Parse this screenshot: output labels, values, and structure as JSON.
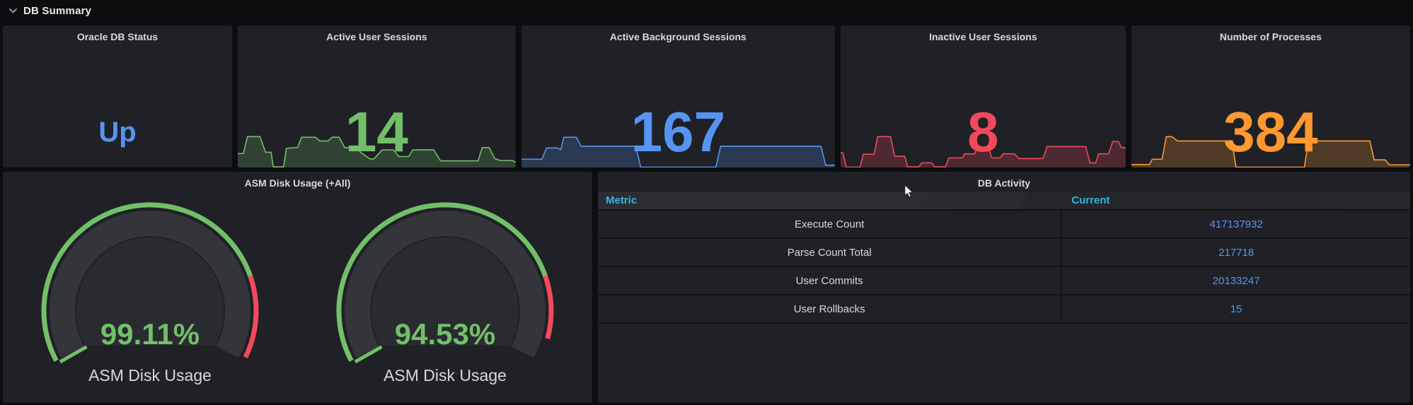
{
  "row_header": {
    "title": "DB Summary",
    "collapse_icon": "chevron-down"
  },
  "colors": {
    "page_bg": "#0c0d0f",
    "panel_bg": "#1f2126",
    "title_text": "#d8d9da",
    "blue": "#5794F2",
    "green": "#73BF69",
    "red": "#F2495C",
    "orange": "#FF9830",
    "table_header_blue": "#33B5E5",
    "gauge_track": "#33353a",
    "gauge_inner": "#292b30",
    "row_line": "#121316"
  },
  "stat_panels": [
    {
      "title": "Oracle DB Status",
      "value": "Up",
      "color": "#5794F2",
      "sparkline": null
    },
    {
      "title": "Active User Sessions",
      "value": "14",
      "color": "#73BF69",
      "sparkline": {
        "points": [
          [
            0,
            42
          ],
          [
            2,
            42
          ],
          [
            3.5,
            93
          ],
          [
            8,
            93
          ],
          [
            10,
            46
          ],
          [
            12,
            46
          ],
          [
            12.8,
            2
          ],
          [
            16.5,
            2
          ],
          [
            17.5,
            58
          ],
          [
            21.5,
            60
          ],
          [
            23,
            91
          ],
          [
            28,
            91
          ],
          [
            29.5,
            80
          ],
          [
            32.5,
            80
          ],
          [
            34,
            91
          ],
          [
            36.5,
            91
          ],
          [
            38.5,
            60
          ],
          [
            42.5,
            60
          ],
          [
            44.5,
            44
          ],
          [
            47.5,
            26
          ],
          [
            49,
            26
          ],
          [
            52,
            53
          ],
          [
            56,
            53
          ],
          [
            58,
            33
          ],
          [
            61.5,
            33
          ],
          [
            63,
            53
          ],
          [
            70.5,
            53
          ],
          [
            73,
            20
          ],
          [
            86.5,
            20
          ],
          [
            88,
            60
          ],
          [
            90.5,
            60
          ],
          [
            92.5,
            27
          ],
          [
            94.5,
            21
          ],
          [
            99,
            21
          ],
          [
            100,
            16
          ]
        ]
      }
    },
    {
      "title": "Active Background Sessions",
      "value": "167",
      "color": "#5794F2",
      "sparkline": {
        "points": [
          [
            0,
            25
          ],
          [
            6.5,
            25
          ],
          [
            8,
            59
          ],
          [
            11.5,
            59
          ],
          [
            12.5,
            53
          ],
          [
            13.5,
            91
          ],
          [
            17.5,
            91
          ],
          [
            19,
            64
          ],
          [
            36.5,
            64
          ],
          [
            38,
            1
          ],
          [
            62,
            1
          ],
          [
            63.5,
            64
          ],
          [
            95.5,
            64
          ],
          [
            97,
            7
          ],
          [
            100,
            7
          ]
        ]
      }
    },
    {
      "title": "Inactive User Sessions",
      "value": "8",
      "color": "#F2495C",
      "sparkline": {
        "points": [
          [
            0,
            44
          ],
          [
            0.8,
            44
          ],
          [
            2,
            1
          ],
          [
            6.8,
            1
          ],
          [
            8,
            40
          ],
          [
            11.8,
            40
          ],
          [
            13,
            93
          ],
          [
            17.5,
            93
          ],
          [
            19,
            34
          ],
          [
            22.5,
            34
          ],
          [
            23.5,
            2
          ],
          [
            27.5,
            2
          ],
          [
            28.5,
            14
          ],
          [
            32,
            14
          ],
          [
            33,
            2
          ],
          [
            36.8,
            2
          ],
          [
            38,
            29
          ],
          [
            42.8,
            29
          ],
          [
            43.5,
            41
          ],
          [
            47,
            41
          ],
          [
            48,
            60
          ],
          [
            52,
            60
          ],
          [
            53,
            29
          ],
          [
            56,
            29
          ],
          [
            57,
            41
          ],
          [
            61,
            41
          ],
          [
            62.5,
            27
          ],
          [
            71,
            27
          ],
          [
            72.5,
            63
          ],
          [
            86,
            63
          ],
          [
            87.5,
            14
          ],
          [
            89.5,
            14
          ],
          [
            90.5,
            41
          ],
          [
            94,
            41
          ],
          [
            95.5,
            78
          ],
          [
            97.5,
            78
          ],
          [
            98.5,
            60
          ],
          [
            100,
            60
          ]
        ]
      }
    },
    {
      "title": "Number of Processes",
      "value": "384",
      "color": "#FF9830",
      "sparkline": {
        "points": [
          [
            0,
            9
          ],
          [
            6.5,
            9
          ],
          [
            7.5,
            25
          ],
          [
            11,
            25
          ],
          [
            12.5,
            93
          ],
          [
            14.5,
            93
          ],
          [
            16.5,
            80
          ],
          [
            36,
            80
          ],
          [
            37.5,
            1
          ],
          [
            62,
            1
          ],
          [
            63.5,
            80
          ],
          [
            85.5,
            80
          ],
          [
            87,
            23
          ],
          [
            91,
            23
          ],
          [
            92.5,
            8
          ],
          [
            100,
            8
          ]
        ]
      }
    }
  ],
  "gauge_panel": {
    "title": "ASM Disk Usage (+All)",
    "min": 0,
    "max": 100,
    "threshold_percent": 80,
    "gauges": [
      {
        "value_label": "99.11%",
        "percent": 99.11,
        "label": "ASM Disk Usage"
      },
      {
        "value_label": "94.53%",
        "percent": 94.53,
        "label": "ASM Disk Usage"
      }
    ]
  },
  "table_panel": {
    "title": "DB Activity",
    "columns": [
      "Metric",
      "Current"
    ],
    "rows": [
      [
        "Execute Count",
        "417137932"
      ],
      [
        "Parse Count Total",
        "217718"
      ],
      [
        "User Commits",
        "20133247"
      ],
      [
        "User Rollbacks",
        "15"
      ]
    ]
  }
}
